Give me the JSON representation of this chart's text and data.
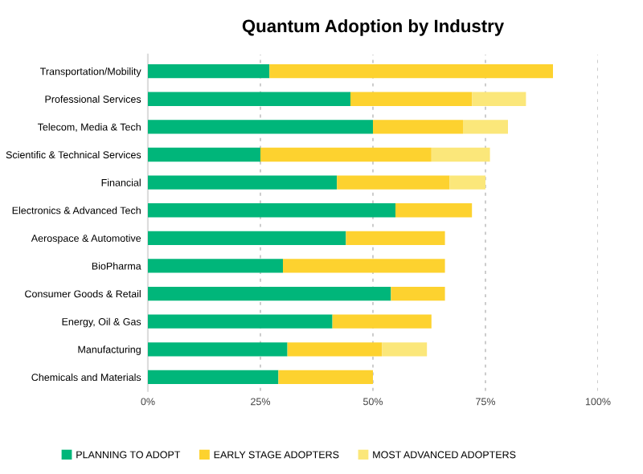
{
  "chart_data": {
    "type": "bar",
    "orientation": "horizontal",
    "stacked": true,
    "title": "Quantum Adoption by Industry",
    "categories": [
      "Transportation/Mobility",
      "Professional Services",
      "Telecom, Media & Tech",
      "Scientific & Technical Services",
      "Financial",
      "Electronics & Advanced Tech",
      "Aerospace & Automotive",
      "BioPharma",
      "Consumer Goods & Retail",
      "Energy, Oil & Gas",
      "Manufacturing",
      "Chemicals and Materials"
    ],
    "series": [
      {
        "name": "PLANNING TO ADOPT",
        "color": "#00b67a",
        "values": [
          27,
          45,
          50,
          25,
          42,
          55,
          44,
          30,
          54,
          41,
          31,
          29
        ]
      },
      {
        "name": "EARLY STAGE ADOPTERS",
        "color": "#fdd22f",
        "values": [
          63,
          27,
          20,
          38,
          25,
          17,
          22,
          36,
          12,
          22,
          21,
          21
        ]
      },
      {
        "name": "MOST ADVANCED ADOPTERS",
        "color": "#fbe77a",
        "values": [
          null,
          12,
          10,
          13,
          8,
          null,
          null,
          null,
          null,
          null,
          10,
          null
        ]
      }
    ],
    "xlim": [
      0,
      100
    ],
    "xticks": [
      {
        "value": 0,
        "label": "0%"
      },
      {
        "value": 25,
        "label": "25%"
      },
      {
        "value": 50,
        "label": "50%"
      },
      {
        "value": 75,
        "label": "75%"
      },
      {
        "value": 100,
        "label": "100%"
      }
    ],
    "grid": "x",
    "legend": "bottom"
  }
}
